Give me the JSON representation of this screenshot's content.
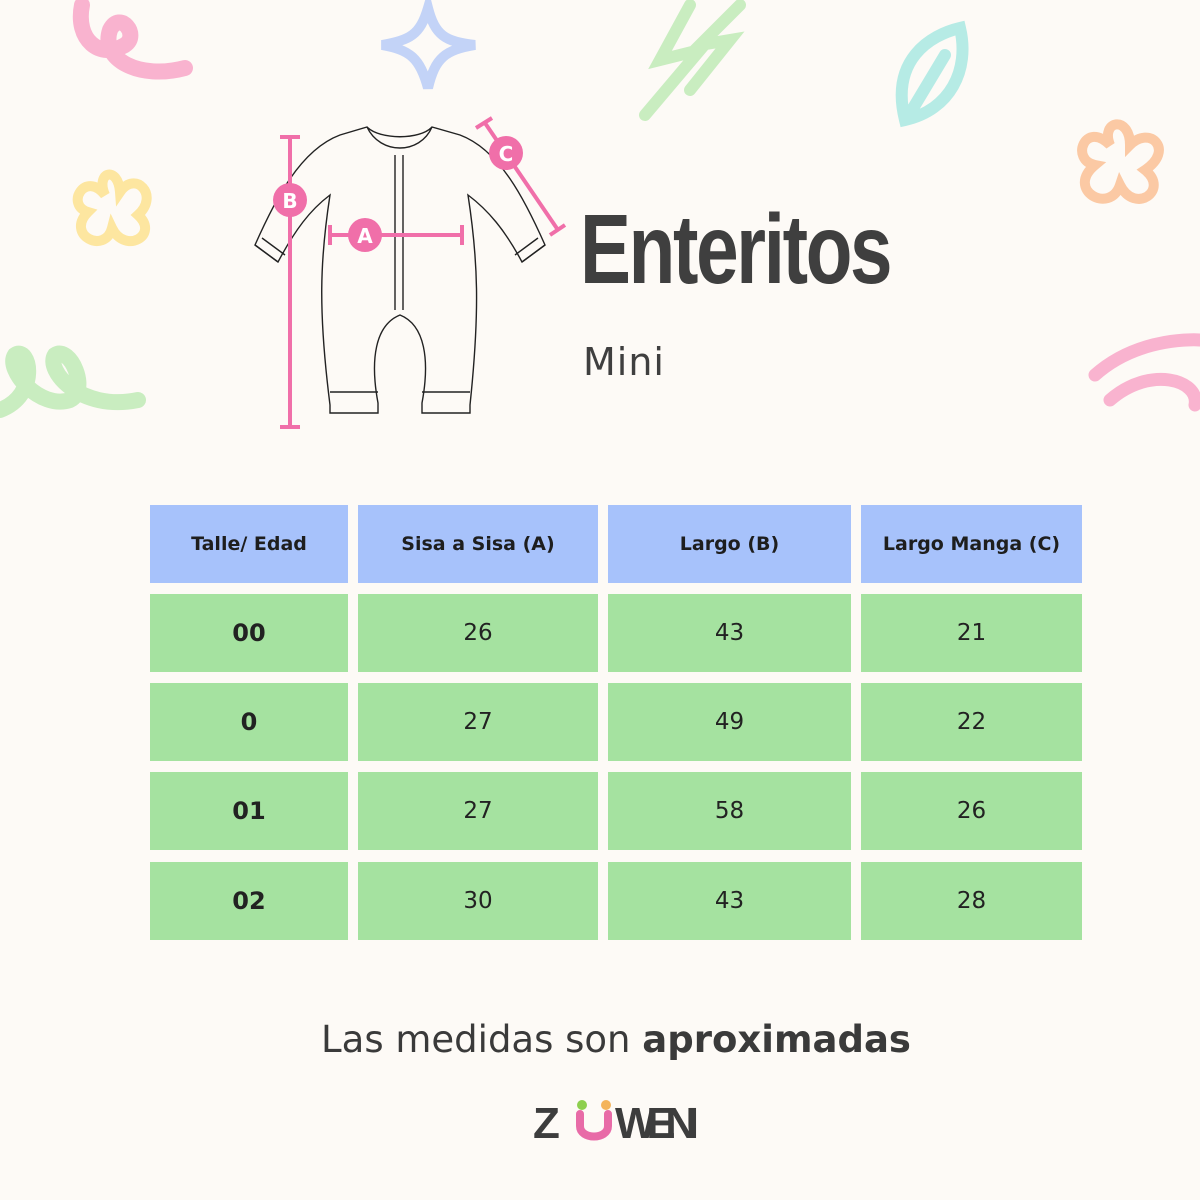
{
  "title": "Enteritos",
  "subtitle": "Mini",
  "diagram": {
    "labels": [
      "A",
      "B",
      "C"
    ],
    "accent": "#f06fa9"
  },
  "table": {
    "headers": [
      "Talle/ Edad",
      "Sisa a Sisa (A)",
      "Largo (B)",
      "Largo Manga (C)"
    ],
    "rows": [
      [
        "00",
        "26",
        "43",
        "21"
      ],
      [
        "0",
        "27",
        "49",
        "22"
      ],
      [
        "01",
        "27",
        "58",
        "26"
      ],
      [
        "02",
        "30",
        "43",
        "28"
      ]
    ],
    "header_color": "#a7c2fb",
    "row_color": "#a5e2a0"
  },
  "note": {
    "prefix": "Las medidas son ",
    "bold": "aproximadas"
  },
  "logo": "ZUWENI"
}
